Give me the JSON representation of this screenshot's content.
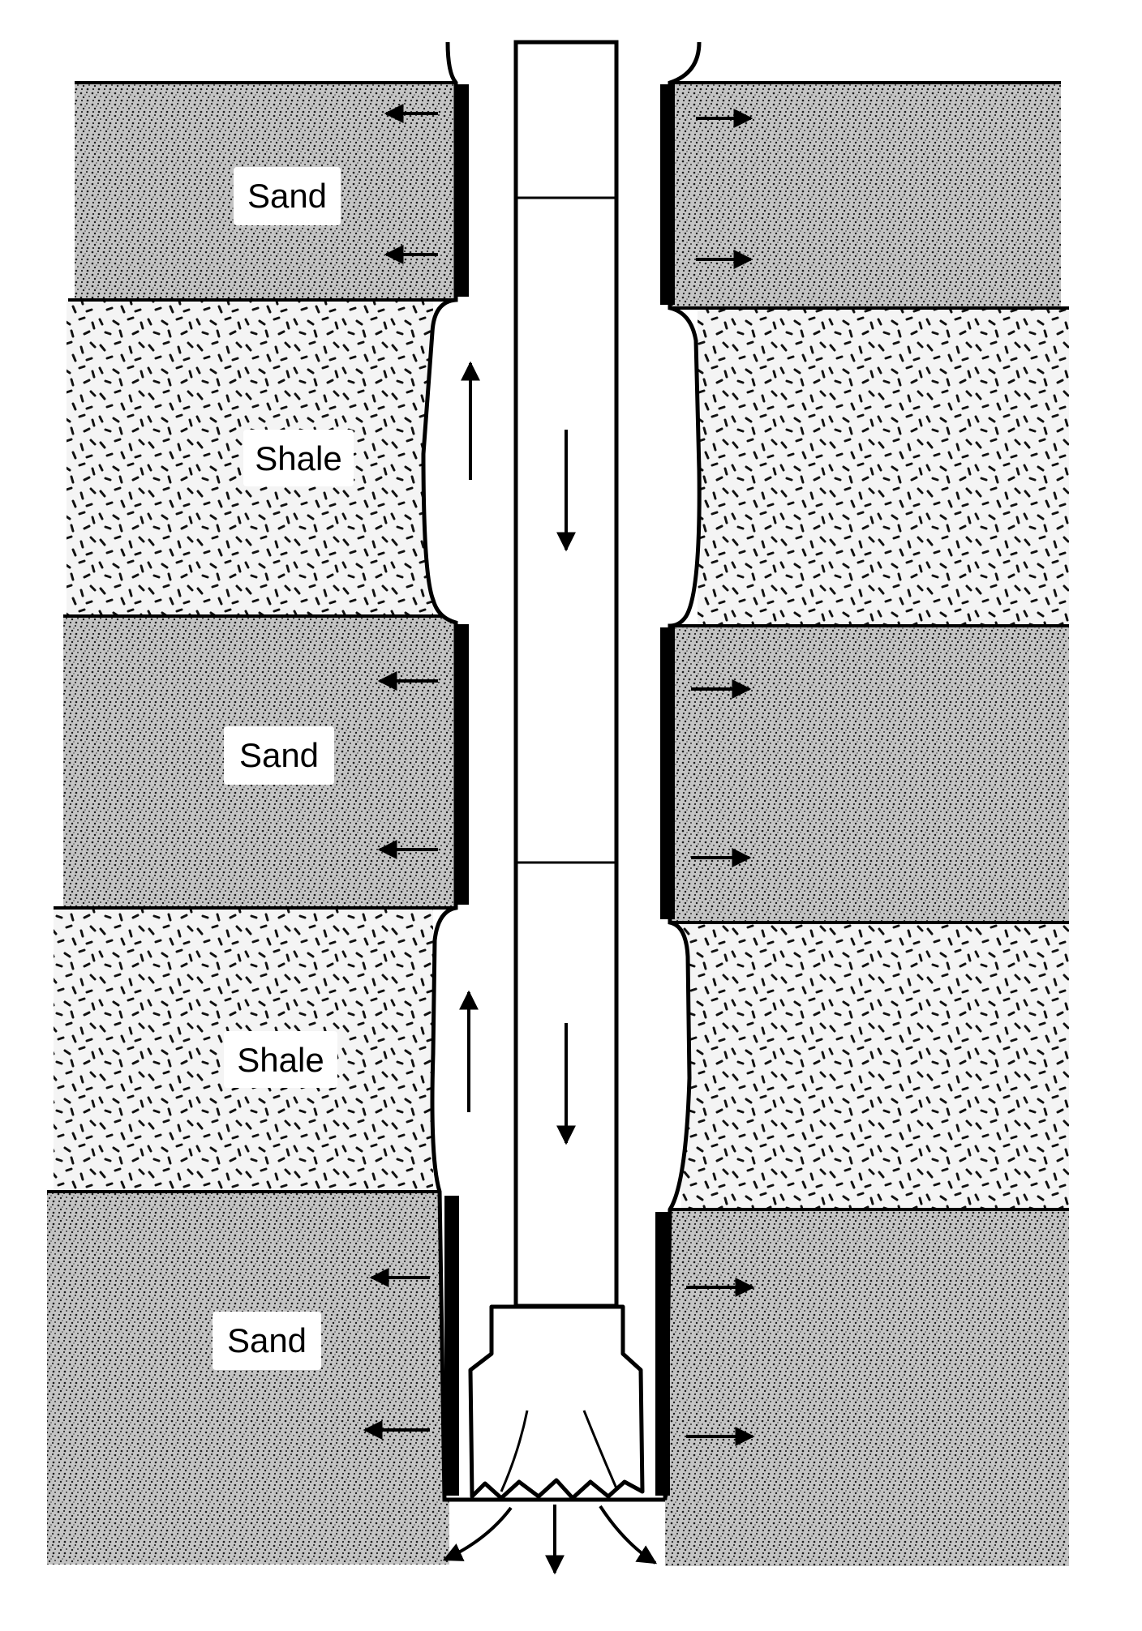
{
  "diagram": {
    "layers": [
      {
        "id": "sand-1",
        "label": "Sand",
        "kind": "sand"
      },
      {
        "id": "shale-1",
        "label": "Shale",
        "kind": "shale"
      },
      {
        "id": "sand-2",
        "label": "Sand",
        "kind": "sand"
      },
      {
        "id": "shale-2",
        "label": "Shale",
        "kind": "shale"
      },
      {
        "id": "sand-3",
        "label": "Sand",
        "kind": "sand"
      }
    ],
    "colors": {
      "ink": "#000000",
      "sand_fill": "#c9c9c9",
      "shale_fill": "#f2f2f2",
      "background": "#ffffff"
    }
  }
}
